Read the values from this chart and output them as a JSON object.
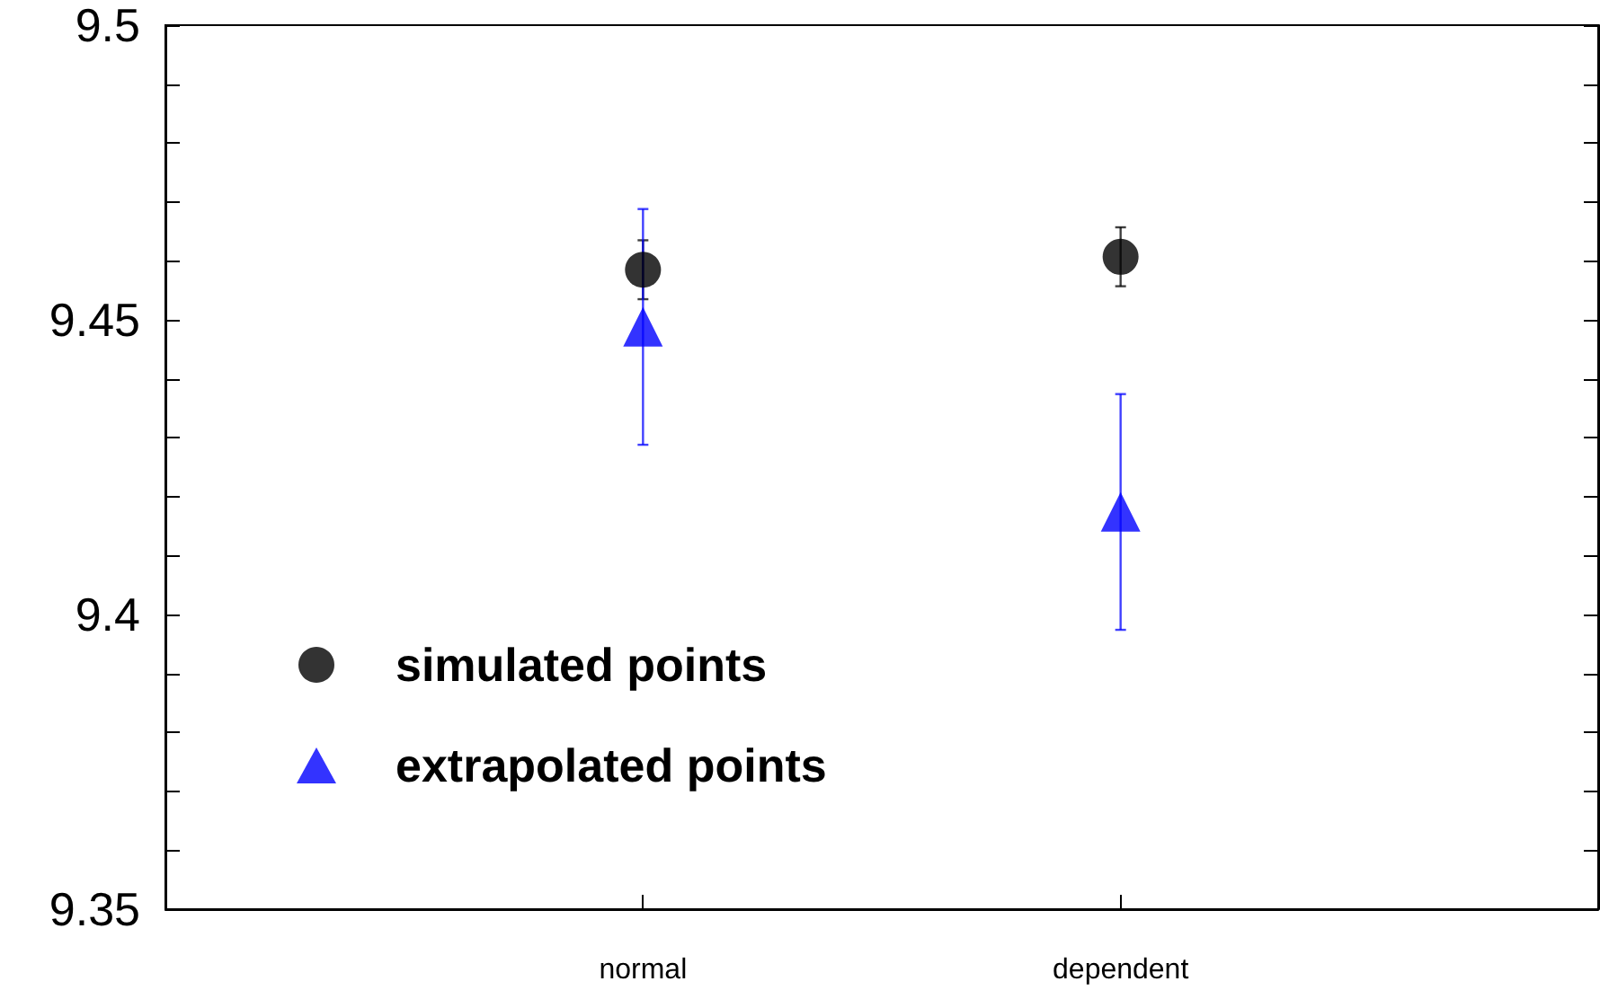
{
  "chart_data": {
    "type": "scatter",
    "categories": [
      "normal",
      "dependent"
    ],
    "series": [
      {
        "name": "simulated points",
        "color": "#000000",
        "values": [
          9.4585,
          9.4607
        ],
        "errors": [
          0.005,
          0.005
        ],
        "marker": "circle"
      },
      {
        "name": "extrapolated points",
        "color": "#0000ff",
        "values": [
          9.4488,
          9.4174
        ],
        "errors": [
          0.02,
          0.02
        ],
        "marker": "triangle"
      }
    ],
    "ylim": [
      9.35,
      9.5
    ],
    "yticks": [
      9.35,
      {
        "value": 9.36,
        "label": null
      },
      {
        "value": 9.37,
        "label": null
      },
      {
        "value": 9.38,
        "label": null
      },
      {
        "value": 9.39,
        "label": null
      },
      9.4,
      {
        "value": 9.41,
        "label": null
      },
      {
        "value": 9.42,
        "label": null
      },
      {
        "value": 9.43,
        "label": null
      },
      {
        "value": 9.44,
        "label": null
      },
      9.45,
      {
        "value": 9.46,
        "label": null
      },
      {
        "value": 9.47,
        "label": null
      },
      {
        "value": 9.48,
        "label": null
      },
      {
        "value": 9.49,
        "label": null
      },
      9.5
    ],
    "grid": false,
    "legend": "bottom left"
  }
}
